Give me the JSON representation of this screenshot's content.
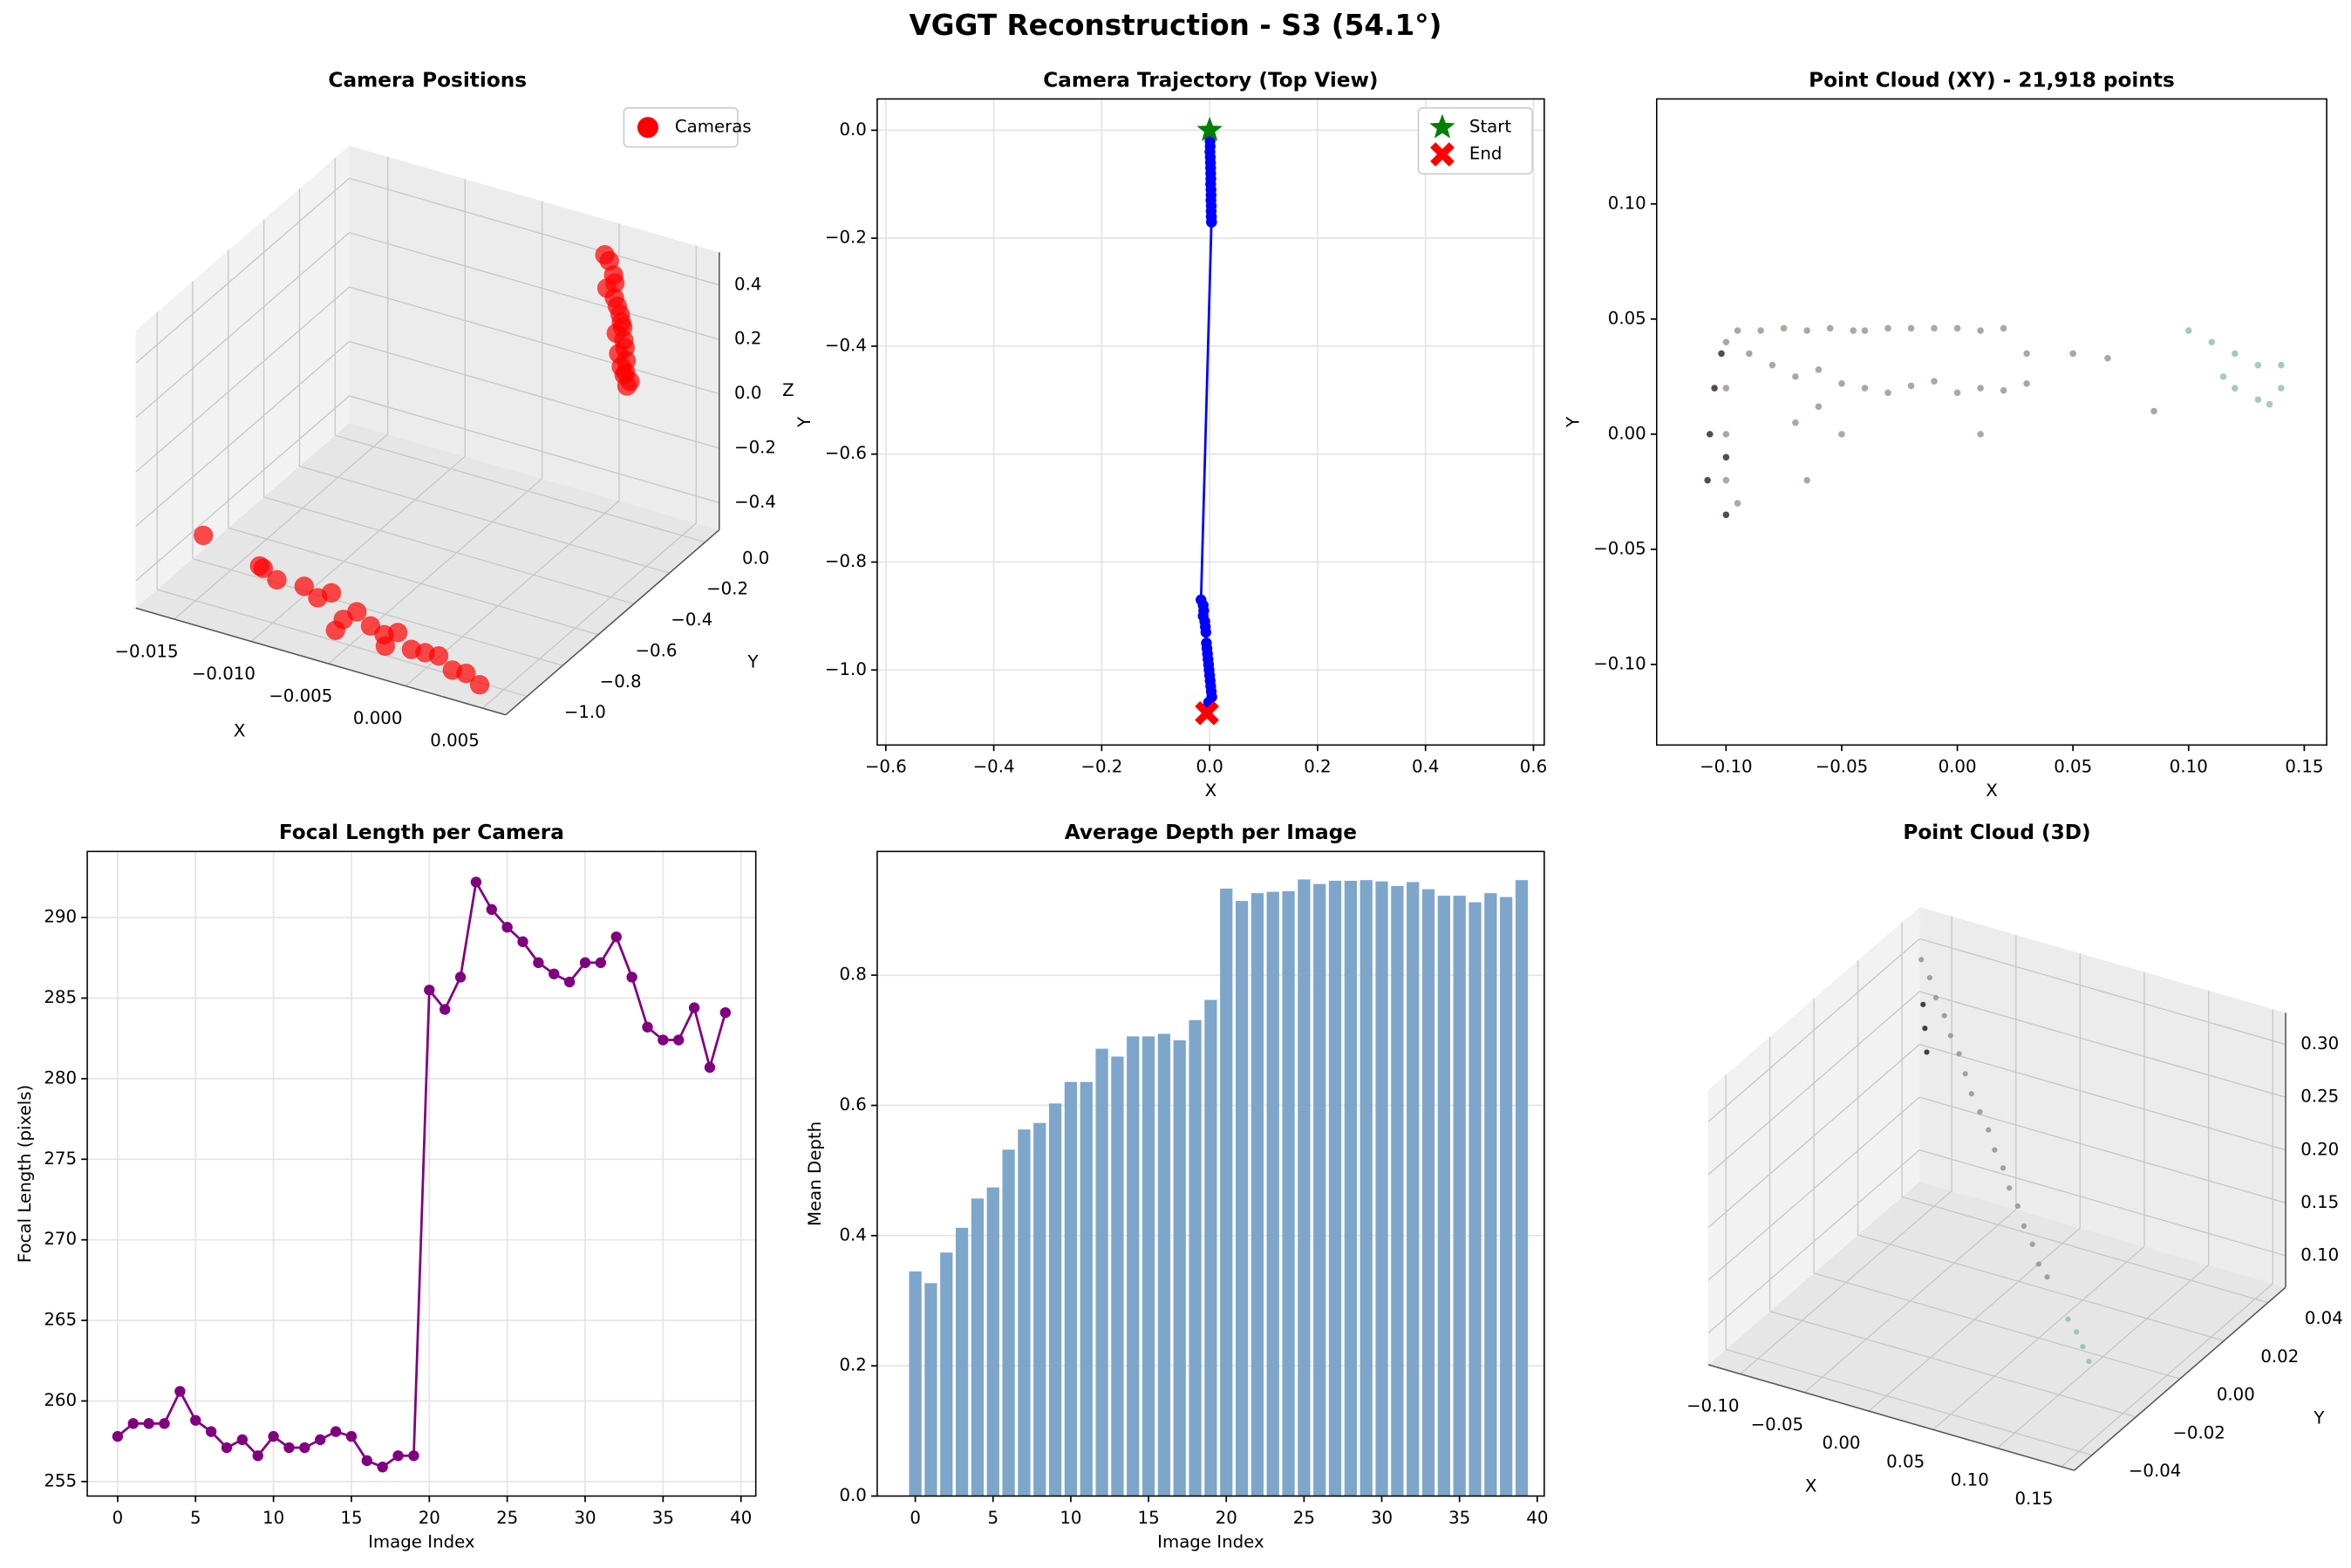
{
  "title": "VGGT Reconstruction - S3 (54.1°)",
  "chart_data": [
    {
      "type": "scatter3d",
      "title": "Camera Positions",
      "x_label": "X",
      "y_label": "Y",
      "z_label": "Z",
      "legend": "upper right",
      "series": [
        {
          "name": "Cameras",
          "color": "#ff0000",
          "x": [
            0.0,
            0.0004,
            0.0008,
            0.001,
            0.0006,
            0.0012,
            0.0015,
            0.0018,
            0.002,
            0.0022,
            0.0019,
            0.0025,
            0.0027,
            0.0024,
            0.003,
            0.0028,
            0.0032,
            0.0031,
            0.0036,
            0.0034,
            -0.016,
            -0.012,
            -0.011,
            -0.012,
            -0.009,
            -0.008,
            -0.007,
            -0.006,
            -0.005,
            -0.004,
            -0.003,
            -0.002,
            -0.001,
            0.0,
            0.001,
            0.002,
            0.003,
            0.004,
            -0.002,
            -0.005
          ],
          "y": [
            0.0,
            -0.01,
            -0.02,
            -0.03,
            -0.04,
            -0.05,
            -0.06,
            -0.07,
            -0.08,
            -0.09,
            -0.1,
            -0.11,
            -0.12,
            -0.13,
            -0.14,
            -0.15,
            -0.16,
            -0.16,
            -0.17,
            -0.17,
            -0.87,
            -0.88,
            -0.89,
            -0.9,
            -0.91,
            -0.92,
            -0.93,
            -0.95,
            -0.96,
            -0.97,
            -0.98,
            -0.99,
            -1.0,
            -1.01,
            -1.02,
            -1.03,
            -1.04,
            -1.05,
            -1.06,
            -1.08
          ],
          "z": [
            0.45,
            0.44,
            0.4,
            0.38,
            0.36,
            0.34,
            0.32,
            0.3,
            0.28,
            0.27,
            0.25,
            0.24,
            0.22,
            0.2,
            0.19,
            0.17,
            0.16,
            0.15,
            0.14,
            0.12,
            -0.35,
            -0.4,
            -0.42,
            -0.38,
            -0.4,
            -0.42,
            -0.38,
            -0.45,
            -0.4,
            -0.43,
            -0.44,
            -0.41,
            -0.45,
            -0.44,
            -0.43,
            -0.46,
            -0.45,
            -0.47,
            -0.42,
            -0.4
          ]
        }
      ],
      "xlim": [
        -0.0175,
        0.0065
      ],
      "ylim": [
        -1.12,
        0.08
      ],
      "zlim": [
        -0.5,
        0.52
      ],
      "xticks": [
        {
          "value": -0.015,
          "label": "−0.015"
        },
        {
          "value": -0.01,
          "label": "−0.010"
        },
        {
          "value": -0.005,
          "label": "−0.005"
        },
        {
          "value": 0,
          "label": "0.000"
        },
        {
          "value": 0.005,
          "label": "0.005"
        }
      ],
      "yticks": [
        {
          "value": 0,
          "label": "0.0"
        },
        {
          "value": -0.2,
          "label": "−0.2"
        },
        {
          "value": -0.4,
          "label": "−0.4"
        },
        {
          "value": -0.6,
          "label": "−0.6"
        },
        {
          "value": -0.8,
          "label": "−0.8"
        },
        {
          "value": -1.0,
          "label": "−1.0"
        }
      ],
      "zticks": [
        {
          "value": -0.4,
          "label": "−0.4"
        },
        {
          "value": -0.2,
          "label": "−0.2"
        },
        {
          "value": 0,
          "label": "0.0"
        },
        {
          "value": 0.2,
          "label": "0.2"
        },
        {
          "value": 0.4,
          "label": "0.4"
        }
      ]
    },
    {
      "type": "line",
      "title": "Camera Trajectory (Top View)",
      "x_label": "X",
      "y_label": "Y",
      "grid": true,
      "legend": "upper right",
      "series": [
        {
          "color": "#0000ff",
          "marker": "circle",
          "x": [
            0.0,
            0.0004,
            0.0008,
            0.001,
            0.0006,
            0.0012,
            0.0015,
            0.0018,
            0.002,
            0.0022,
            0.0019,
            0.0025,
            0.0027,
            0.0024,
            0.003,
            0.0028,
            0.0032,
            0.0031,
            0.0036,
            0.0034,
            -0.016,
            -0.012,
            -0.011,
            -0.012,
            -0.009,
            -0.008,
            -0.007,
            -0.006,
            -0.005,
            -0.004,
            -0.003,
            -0.002,
            -0.001,
            0.0,
            0.001,
            0.002,
            0.003,
            0.004,
            -0.002,
            -0.005
          ],
          "y": [
            0.0,
            -0.01,
            -0.02,
            -0.03,
            -0.04,
            -0.05,
            -0.06,
            -0.07,
            -0.08,
            -0.09,
            -0.1,
            -0.11,
            -0.12,
            -0.13,
            -0.14,
            -0.15,
            -0.16,
            -0.16,
            -0.17,
            -0.17,
            -0.87,
            -0.88,
            -0.89,
            -0.9,
            -0.91,
            -0.92,
            -0.93,
            -0.95,
            -0.96,
            -0.97,
            -0.98,
            -0.99,
            -1.0,
            -1.01,
            -1.02,
            -1.03,
            -1.04,
            -1.05,
            -1.06,
            -1.08
          ]
        },
        {
          "name": "Start",
          "color": "#008000",
          "marker": "star",
          "x": [
            0.0
          ],
          "y": [
            0.0
          ]
        },
        {
          "name": "End",
          "color": "#ff0000",
          "marker": "x",
          "x": [
            -0.005
          ],
          "y": [
            -1.08
          ]
        }
      ],
      "xlim": [
        -0.616,
        0.62
      ],
      "ylim": [
        -1.139,
        0.058
      ],
      "xticks": [
        {
          "value": -0.6,
          "label": "−0.6"
        },
        {
          "value": -0.4,
          "label": "−0.4"
        },
        {
          "value": -0.2,
          "label": "−0.2"
        },
        {
          "value": 0,
          "label": "0.0"
        },
        {
          "value": 0.2,
          "label": "0.2"
        },
        {
          "value": 0.4,
          "label": "0.4"
        },
        {
          "value": 0.6,
          "label": "0.6"
        }
      ],
      "yticks": [
        {
          "value": 0,
          "label": "0.0"
        },
        {
          "value": -0.2,
          "label": "−0.2"
        },
        {
          "value": -0.4,
          "label": "−0.4"
        },
        {
          "value": -0.6,
          "label": "−0.6"
        },
        {
          "value": -0.8,
          "label": "−0.8"
        },
        {
          "value": -1.0,
          "label": "−1.0"
        }
      ]
    },
    {
      "type": "scatter",
      "title": "Point Cloud (XY) - 21,918 points",
      "x_label": "X",
      "y_label": "Y",
      "grid": false,
      "series": [
        {
          "color": "#9a9090",
          "x": [
            -0.095,
            -0.085,
            -0.075,
            -0.065,
            -0.055,
            -0.045,
            -0.04,
            -0.03,
            -0.02,
            -0.01,
            0.0,
            0.01,
            0.02,
            -0.09,
            -0.08,
            -0.07,
            -0.06,
            -0.05,
            -0.04,
            -0.03,
            -0.02,
            -0.01,
            0.0,
            0.01,
            0.02,
            0.03,
            -0.06,
            -0.07,
            -0.05,
            0.01,
            0.03,
            0.05,
            0.065,
            0.085,
            -0.1,
            -0.1,
            -0.1,
            -0.1,
            -0.095,
            -0.065
          ],
          "y": [
            0.045,
            0.045,
            0.046,
            0.045,
            0.046,
            0.045,
            0.045,
            0.046,
            0.046,
            0.046,
            0.046,
            0.045,
            0.046,
            0.035,
            0.03,
            0.025,
            0.028,
            0.022,
            0.02,
            0.018,
            0.021,
            0.023,
            0.018,
            0.02,
            0.019,
            0.022,
            0.012,
            0.005,
            0.0,
            0.0,
            0.035,
            0.035,
            0.033,
            0.01,
            0.04,
            0.02,
            0.0,
            -0.02,
            -0.03,
            -0.02
          ]
        },
        {
          "color": "#2b2020",
          "x": [
            -0.1,
            -0.108,
            -0.107,
            -0.105,
            -0.102,
            -0.1
          ],
          "y": [
            -0.035,
            -0.02,
            0.0,
            0.02,
            0.035,
            -0.01
          ]
        },
        {
          "color": "#8fc0a0",
          "x": [
            0.1,
            0.11,
            0.12,
            0.13,
            0.14,
            0.12,
            0.13,
            0.14,
            0.115,
            0.135
          ],
          "y": [
            0.045,
            0.04,
            0.035,
            0.03,
            0.03,
            0.02,
            0.015,
            0.02,
            0.025,
            0.013
          ]
        }
      ],
      "xlim": [
        -0.13,
        0.1597
      ],
      "ylim": [
        -0.135,
        0.1456
      ],
      "xticks": [
        {
          "value": -0.1,
          "label": "−0.10"
        },
        {
          "value": -0.05,
          "label": "−0.05"
        },
        {
          "value": 0,
          "label": "0.00"
        },
        {
          "value": 0.05,
          "label": "0.05"
        },
        {
          "value": 0.1,
          "label": "0.10"
        },
        {
          "value": 0.15,
          "label": "0.15"
        }
      ],
      "yticks": [
        {
          "value": -0.1,
          "label": "−0.10"
        },
        {
          "value": -0.05,
          "label": "−0.05"
        },
        {
          "value": 0,
          "label": "0.00"
        },
        {
          "value": 0.05,
          "label": "0.05"
        },
        {
          "value": 0.1,
          "label": "0.10"
        }
      ]
    },
    {
      "type": "line",
      "title": "Focal Length per Camera",
      "x_label": "Image Index",
      "y_label": "Focal Length (pixels)",
      "grid": true,
      "series": [
        {
          "color": "#800080",
          "marker": "circle",
          "x": [
            0,
            1,
            2,
            3,
            4,
            5,
            6,
            7,
            8,
            9,
            10,
            11,
            12,
            13,
            14,
            15,
            16,
            17,
            18,
            19,
            20,
            21,
            22,
            23,
            24,
            25,
            26,
            27,
            28,
            29,
            30,
            31,
            32,
            33,
            34,
            35,
            36,
            37,
            38,
            39
          ],
          "y": [
            257.8,
            258.6,
            258.6,
            258.6,
            260.6,
            258.8,
            258.1,
            257.1,
            257.6,
            256.6,
            257.8,
            257.1,
            257.1,
            257.6,
            258.1,
            257.8,
            256.3,
            255.9,
            256.6,
            256.6,
            285.5,
            284.3,
            286.3,
            292.2,
            290.5,
            289.4,
            288.5,
            287.2,
            286.5,
            286.0,
            287.2,
            287.2,
            288.8,
            286.3,
            283.2,
            282.4,
            282.4,
            284.4,
            280.7,
            284.1
          ]
        }
      ],
      "xlim": [
        -1.95,
        40.95
      ],
      "ylim": [
        254.1,
        294.1
      ],
      "xticks": [
        0,
        5,
        10,
        15,
        20,
        25,
        30,
        35,
        40
      ],
      "yticks": [
        255,
        260,
        265,
        270,
        275,
        280,
        285,
        290
      ]
    },
    {
      "type": "bar",
      "title": "Average Depth per Image",
      "x_label": "Image Index",
      "y_label": "Mean Depth",
      "grid": "y",
      "color": "#7ea6cb",
      "x": [
        0,
        1,
        2,
        3,
        4,
        5,
        6,
        7,
        8,
        9,
        10,
        11,
        12,
        13,
        14,
        15,
        16,
        17,
        18,
        19,
        20,
        21,
        22,
        23,
        24,
        25,
        26,
        27,
        28,
        29,
        30,
        31,
        32,
        33,
        34,
        35,
        36,
        37,
        38,
        39
      ],
      "values": [
        0.345,
        0.327,
        0.374,
        0.412,
        0.457,
        0.474,
        0.532,
        0.563,
        0.573,
        0.603,
        0.636,
        0.636,
        0.687,
        0.675,
        0.706,
        0.706,
        0.71,
        0.7,
        0.731,
        0.762,
        0.933,
        0.914,
        0.926,
        0.928,
        0.929,
        0.947,
        0.94,
        0.945,
        0.945,
        0.946,
        0.944,
        0.937,
        0.943,
        0.932,
        0.922,
        0.922,
        0.912,
        0.926,
        0.92,
        0.946
      ],
      "xlim": [
        -2.45,
        40.45
      ],
      "ylim": [
        0,
        0.99
      ],
      "xticks": [
        0,
        5,
        10,
        15,
        20,
        25,
        30,
        35,
        40
      ],
      "yticks": [
        {
          "value": 0,
          "label": "0.0"
        },
        0.2,
        0.4,
        0.6,
        0.8
      ]
    },
    {
      "type": "scatter3d",
      "title": "Point Cloud (3D)",
      "x_label": "X",
      "y_label": "Y",
      "series": [
        {
          "color": "#9a9090",
          "x": [
            -0.11,
            -0.1,
            -0.09,
            -0.08,
            -0.07,
            -0.06,
            -0.05,
            -0.04,
            -0.03,
            -0.02,
            -0.01,
            0.0,
            0.01,
            0.02,
            0.03,
            0.04,
            0.05,
            0.06
          ],
          "y": [
            0.04,
            0.038,
            0.035,
            0.033,
            0.03,
            0.028,
            0.025,
            0.022,
            0.02,
            0.018,
            0.015,
            0.013,
            0.01,
            0.008,
            0.005,
            0.003,
            0.0,
            -0.002
          ],
          "z": [
            0.3,
            0.29,
            0.28,
            0.27,
            0.26,
            0.25,
            0.24,
            0.23,
            0.22,
            0.21,
            0.2,
            0.19,
            0.18,
            0.17,
            0.16,
            0.15,
            0.14,
            0.135
          ]
        },
        {
          "color": "#2b2020",
          "x": [
            -0.09,
            -0.08,
            -0.1
          ],
          "y": [
            0.03,
            0.025,
            0.035
          ],
          "z": [
            0.26,
            0.25,
            0.27
          ]
        },
        {
          "color": "#8fc0a0",
          "x": [
            0.09,
            0.1,
            0.11,
            0.12
          ],
          "y": [
            -0.01,
            -0.012,
            -0.015,
            -0.018
          ],
          "z": [
            0.12,
            0.115,
            0.11,
            0.105
          ]
        }
      ],
      "xlim": [
        -0.125,
        0.16
      ],
      "ylim": [
        -0.048,
        0.048
      ],
      "zlim": [
        0.07,
        0.33
      ],
      "xticks": [
        {
          "value": -0.1,
          "label": "−0.10"
        },
        {
          "value": -0.05,
          "label": "−0.05"
        },
        {
          "value": 0,
          "label": "0.00"
        },
        {
          "value": 0.05,
          "label": "0.05"
        },
        {
          "value": 0.1,
          "label": "0.10"
        },
        {
          "value": 0.15,
          "label": "0.15"
        }
      ],
      "yticks": [
        {
          "value": -0.04,
          "label": "−0.04"
        },
        {
          "value": -0.02,
          "label": "−0.02"
        },
        {
          "value": 0,
          "label": "0.00"
        },
        {
          "value": 0.02,
          "label": "0.02"
        },
        {
          "value": 0.04,
          "label": "0.04"
        }
      ],
      "zticks": [
        {
          "value": 0.1,
          "label": "0.10"
        },
        {
          "value": 0.15,
          "label": "0.15"
        },
        {
          "value": 0.2,
          "label": "0.20"
        },
        {
          "value": 0.25,
          "label": "0.25"
        },
        {
          "value": 0.3,
          "label": "0.30"
        }
      ]
    }
  ]
}
